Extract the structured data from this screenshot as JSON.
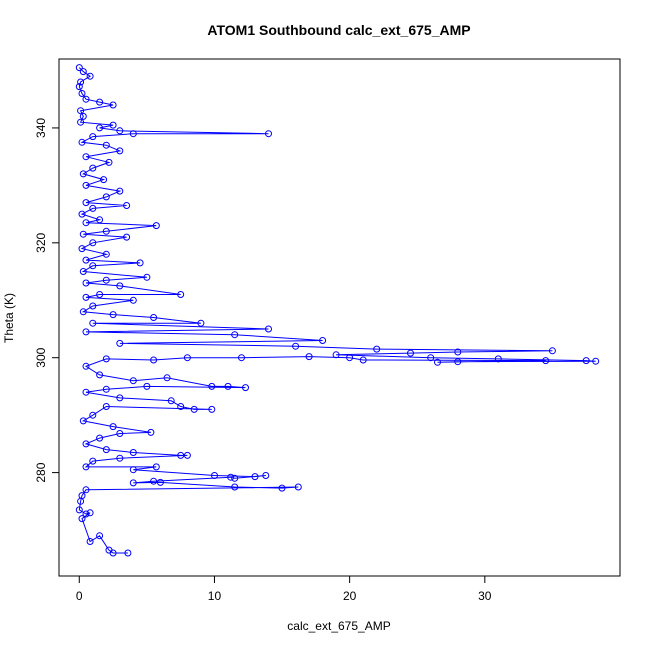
{
  "chart_data": {
    "type": "scatter",
    "title": "ATOM1 Southbound calc_ext_675_AMP",
    "xlabel": "calc_ext_675_AMP",
    "ylabel": "Theta (K)",
    "xlim": [
      -1.5,
      40
    ],
    "ylim": [
      262,
      352
    ],
    "xticks": [
      0,
      10,
      20,
      30
    ],
    "yticks": [
      280,
      300,
      320,
      340
    ],
    "grid": false,
    "legend": "none",
    "series_color": "#0000ff",
    "marker": "open-circle",
    "connected": true,
    "series": [
      {
        "values": [
          [
            0.0,
            350.5
          ],
          [
            0.3,
            349.8
          ],
          [
            0.8,
            349.0
          ],
          [
            0.1,
            348.0
          ],
          [
            0.0,
            347.2
          ],
          [
            0.2,
            346.0
          ],
          [
            0.5,
            345.0
          ],
          [
            1.5,
            344.5
          ],
          [
            2.5,
            344.0
          ],
          [
            0.1,
            343.0
          ],
          [
            0.3,
            342.0
          ],
          [
            0.1,
            341.0
          ],
          [
            2.5,
            340.5
          ],
          [
            1.5,
            340.0
          ],
          [
            3.0,
            339.5
          ],
          [
            14.0,
            339.0
          ],
          [
            4.0,
            339.0
          ],
          [
            1.0,
            338.5
          ],
          [
            0.2,
            337.5
          ],
          [
            2.0,
            337.0
          ],
          [
            3.0,
            336.0
          ],
          [
            0.5,
            335.0
          ],
          [
            2.2,
            334.0
          ],
          [
            1.0,
            333.0
          ],
          [
            0.3,
            332.0
          ],
          [
            1.8,
            331.0
          ],
          [
            0.5,
            330.0
          ],
          [
            3.0,
            329.0
          ],
          [
            2.0,
            328.0
          ],
          [
            0.5,
            327.0
          ],
          [
            3.5,
            326.5
          ],
          [
            1.0,
            326.0
          ],
          [
            0.2,
            325.0
          ],
          [
            1.5,
            324.0
          ],
          [
            0.5,
            323.5
          ],
          [
            5.7,
            323.0
          ],
          [
            2.0,
            322.0
          ],
          [
            0.3,
            321.5
          ],
          [
            3.5,
            321.0
          ],
          [
            1.0,
            320.0
          ],
          [
            0.2,
            319.0
          ],
          [
            2.0,
            318.0
          ],
          [
            0.5,
            317.0
          ],
          [
            4.5,
            316.5
          ],
          [
            1.0,
            316.0
          ],
          [
            0.3,
            315.0
          ],
          [
            5.0,
            314.0
          ],
          [
            2.0,
            313.5
          ],
          [
            0.5,
            313.0
          ],
          [
            3.0,
            312.5
          ],
          [
            7.5,
            311.0
          ],
          [
            1.5,
            311.0
          ],
          [
            0.5,
            310.5
          ],
          [
            4.0,
            310.0
          ],
          [
            1.0,
            309.0
          ],
          [
            0.3,
            308.0
          ],
          [
            2.5,
            307.5
          ],
          [
            5.5,
            307.0
          ],
          [
            9.0,
            306.0
          ],
          [
            1.0,
            306.0
          ],
          [
            14.0,
            305.0
          ],
          [
            0.5,
            304.5
          ],
          [
            11.5,
            304.0
          ],
          [
            18.0,
            303.0
          ],
          [
            3.0,
            302.5
          ],
          [
            16.0,
            302.0
          ],
          [
            22.0,
            301.5
          ],
          [
            35.0,
            301.2
          ],
          [
            28.0,
            301.0
          ],
          [
            24.5,
            300.8
          ],
          [
            19.0,
            300.5
          ],
          [
            26.0,
            300.0
          ],
          [
            31.0,
            299.8
          ],
          [
            37.5,
            299.5
          ],
          [
            38.2,
            299.4
          ],
          [
            28.0,
            299.3
          ],
          [
            26.5,
            299.2
          ],
          [
            34.5,
            299.5
          ],
          [
            21.0,
            299.6
          ],
          [
            20.0,
            300.0
          ],
          [
            17.0,
            300.2
          ],
          [
            12.0,
            300.0
          ],
          [
            8.0,
            300.0
          ],
          [
            5.5,
            299.6
          ],
          [
            2.0,
            299.8
          ],
          [
            0.5,
            298.5
          ],
          [
            1.5,
            297.0
          ],
          [
            4.0,
            296.0
          ],
          [
            6.5,
            296.5
          ],
          [
            9.8,
            295.0
          ],
          [
            11.0,
            295.0
          ],
          [
            12.3,
            294.8
          ],
          [
            5.0,
            295.0
          ],
          [
            2.0,
            294.5
          ],
          [
            0.5,
            294.0
          ],
          [
            3.0,
            293.0
          ],
          [
            6.8,
            292.5
          ],
          [
            7.5,
            291.5
          ],
          [
            8.5,
            291.0
          ],
          [
            9.8,
            291.0
          ],
          [
            2.0,
            291.5
          ],
          [
            1.0,
            290.0
          ],
          [
            0.3,
            289.0
          ],
          [
            2.5,
            288.0
          ],
          [
            5.3,
            287.0
          ],
          [
            3.0,
            286.8
          ],
          [
            1.5,
            286.0
          ],
          [
            0.5,
            285.0
          ],
          [
            2.0,
            284.0
          ],
          [
            4.0,
            283.5
          ],
          [
            7.5,
            283.0
          ],
          [
            8.0,
            283.0
          ],
          [
            3.0,
            282.5
          ],
          [
            1.0,
            282.0
          ],
          [
            0.5,
            281.0
          ],
          [
            5.7,
            281.0
          ],
          [
            4.0,
            280.5
          ],
          [
            10.0,
            279.5
          ],
          [
            13.0,
            279.3
          ],
          [
            13.8,
            279.5
          ],
          [
            11.5,
            279.0
          ],
          [
            11.2,
            279.2
          ],
          [
            5.5,
            278.5
          ],
          [
            4.0,
            278.2
          ],
          [
            6.0,
            278.3
          ],
          [
            11.5,
            277.5
          ],
          [
            15.0,
            277.3
          ],
          [
            16.2,
            277.5
          ],
          [
            0.5,
            277.0
          ],
          [
            0.2,
            276.0
          ],
          [
            0.1,
            275.0
          ],
          [
            0.0,
            273.5
          ],
          [
            0.5,
            272.8
          ],
          [
            0.8,
            273.0
          ],
          [
            0.2,
            272.0
          ],
          [
            0.8,
            268.0
          ],
          [
            1.5,
            269.0
          ],
          [
            2.2,
            266.5
          ],
          [
            2.5,
            266.0
          ],
          [
            3.6,
            266.0
          ]
        ]
      }
    ]
  }
}
